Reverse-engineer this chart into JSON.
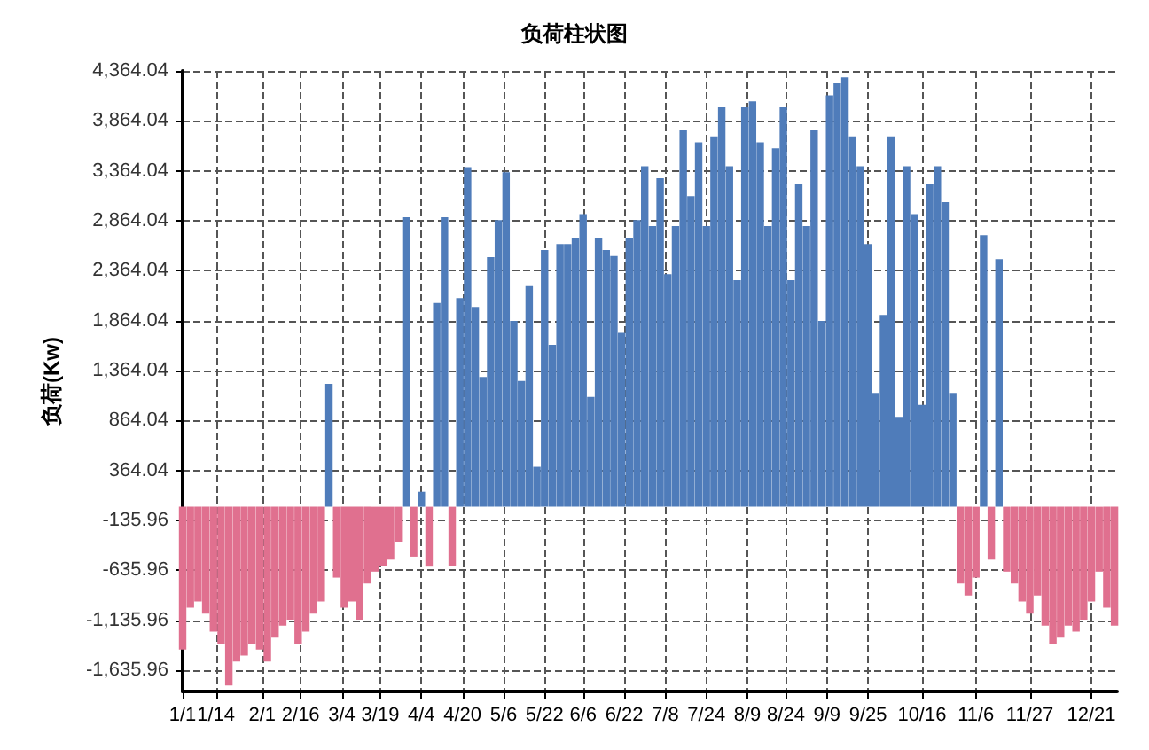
{
  "chart_data": {
    "type": "bar",
    "title": "负荷柱状图",
    "ylabel": "负荷(Kw)",
    "grid": true,
    "x": [
      "--01-01",
      "--01-04",
      "--01-07",
      "--01-10",
      "--01-13",
      "--01-16",
      "--01-19",
      "--01-22",
      "--01-25",
      "--01-28",
      "--01-31",
      "--02-03",
      "--02-06",
      "--02-09",
      "--02-12",
      "--02-15",
      "--02-18",
      "--02-21",
      "--02-24",
      "--02-27",
      "--03-02",
      "--03-05",
      "--03-08",
      "--03-11",
      "--03-14",
      "--03-17",
      "--03-20",
      "--03-23",
      "--03-26",
      "--03-29",
      "--04-01",
      "--04-04",
      "--04-07",
      "--04-10",
      "--04-13",
      "--04-16",
      "--04-19",
      "--04-22",
      "--04-25",
      "--04-28",
      "--05-01",
      "--05-04",
      "--05-07",
      "--05-10",
      "--05-13",
      "--05-16",
      "--05-19",
      "--05-22",
      "--05-25",
      "--05-28",
      "--05-31",
      "--06-03",
      "--06-06",
      "--06-09",
      "--06-12",
      "--06-15",
      "--06-18",
      "--06-21",
      "--06-24",
      "--06-27",
      "--06-30",
      "--07-03",
      "--07-06",
      "--07-09",
      "--07-12",
      "--07-15",
      "--07-18",
      "--07-21",
      "--07-24",
      "--07-27",
      "--07-30",
      "--08-02",
      "--08-05",
      "--08-08",
      "--08-11",
      "--08-14",
      "--08-17",
      "--08-20",
      "--08-23",
      "--08-26",
      "--08-29",
      "--09-01",
      "--09-04",
      "--09-07",
      "--09-10",
      "--09-13",
      "--09-16",
      "--09-19",
      "--09-22",
      "--09-25",
      "--09-28",
      "--10-01",
      "--10-04",
      "--10-07",
      "--10-10",
      "--10-13",
      "--10-16",
      "--10-19",
      "--10-22",
      "--10-25",
      "--10-28",
      "--10-31",
      "--11-03",
      "--11-06",
      "--11-09",
      "--11-12",
      "--11-15",
      "--11-18",
      "--11-21",
      "--11-24",
      "--11-27",
      "--11-30",
      "--12-03",
      "--12-06",
      "--12-09",
      "--12-12",
      "--12-15",
      "--12-18",
      "--12-21",
      "--12-24",
      "--12-27",
      "--12-30"
    ],
    "series": [
      {
        "color": "#4f7cba",
        "values": [
          null,
          null,
          null,
          null,
          null,
          null,
          null,
          null,
          null,
          null,
          null,
          null,
          null,
          null,
          null,
          null,
          null,
          null,
          null,
          1230,
          null,
          null,
          null,
          null,
          null,
          null,
          null,
          null,
          null,
          2900,
          null,
          150,
          null,
          2040,
          2900,
          null,
          2090,
          3400,
          2000,
          1300,
          2500,
          2870,
          3350,
          1860,
          1260,
          2210,
          400,
          2570,
          1620,
          2630,
          2630,
          2690,
          2930,
          1100,
          2690,
          2570,
          2510,
          1740,
          2690,
          2870,
          3410,
          2810,
          3290,
          2330,
          2810,
          3770,
          3110,
          3650,
          2810,
          3710,
          4000,
          3410,
          2270,
          4000,
          4060,
          3650,
          2810,
          3590,
          4000,
          2270,
          3230,
          2810,
          3770,
          1860,
          4120,
          4240,
          4300,
          3710,
          3410,
          2630,
          1140,
          1920,
          3710,
          900,
          3410,
          2930,
          1020,
          3230,
          3410,
          3050,
          1140,
          null,
          null,
          null,
          2720,
          null,
          2480,
          null,
          null,
          null,
          null,
          null,
          null,
          null,
          null,
          null,
          null,
          null,
          null,
          null,
          null,
          null
        ]
      },
      {
        "color": "#e0708f",
        "values": [
          -1430,
          -1010,
          -950,
          -1070,
          -1250,
          -1370,
          -1790,
          -1550,
          -1490,
          -1370,
          -1430,
          -1550,
          -1310,
          -1190,
          -1130,
          -1370,
          -1250,
          -1070,
          -950,
          null,
          -710,
          -1010,
          -950,
          -1130,
          -770,
          -650,
          -590,
          -530,
          -350,
          null,
          -500,
          null,
          -600,
          null,
          null,
          -590,
          null,
          null,
          null,
          null,
          null,
          null,
          null,
          null,
          null,
          null,
          null,
          null,
          null,
          null,
          null,
          null,
          null,
          null,
          null,
          null,
          null,
          null,
          null,
          null,
          null,
          null,
          null,
          null,
          null,
          null,
          null,
          null,
          null,
          null,
          null,
          null,
          null,
          null,
          null,
          null,
          null,
          null,
          null,
          null,
          null,
          null,
          null,
          null,
          null,
          null,
          null,
          null,
          null,
          null,
          null,
          null,
          null,
          null,
          null,
          null,
          null,
          null,
          null,
          null,
          null,
          -770,
          -890,
          -710,
          null,
          -530,
          null,
          -650,
          -770,
          -950,
          -1070,
          -890,
          -1190,
          -1370,
          -1310,
          -1190,
          -1250,
          -1130,
          -950,
          -650,
          -1010,
          -1190
        ]
      }
    ],
    "xlim": [
      "--01-01",
      "--12-31"
    ],
    "xticks": [
      {
        "value": "--01-01",
        "label": "1/1"
      },
      {
        "value": "--01-14",
        "label": "1/14"
      },
      {
        "value": "--02-01",
        "label": "2/1"
      },
      {
        "value": "--02-16",
        "label": "2/16"
      },
      {
        "value": "--03-04",
        "label": "3/4"
      },
      {
        "value": "--03-19",
        "label": "3/19"
      },
      {
        "value": "--04-04",
        "label": "4/4"
      },
      {
        "value": "--04-20",
        "label": "4/20"
      },
      {
        "value": "--05-06",
        "label": "5/6"
      },
      {
        "value": "--05-22",
        "label": "5/22"
      },
      {
        "value": "--06-06",
        "label": "6/6"
      },
      {
        "value": "--06-22",
        "label": "6/22"
      },
      {
        "value": "--07-08",
        "label": "7/8"
      },
      {
        "value": "--07-24",
        "label": "7/24"
      },
      {
        "value": "--08-09",
        "label": "8/9"
      },
      {
        "value": "--08-24",
        "label": "8/24"
      },
      {
        "value": "--09-09",
        "label": "9/9"
      },
      {
        "value": "--09-25",
        "label": "9/25"
      },
      {
        "value": "--10-16",
        "label": "10/16"
      },
      {
        "value": "--11-06",
        "label": "11/6"
      },
      {
        "value": "--11-27",
        "label": "11/27"
      },
      {
        "value": "--12-21",
        "label": "12/21"
      }
    ],
    "ylim": [
      -1850,
      4364.04
    ],
    "yticks": [
      {
        "value": -1635.96,
        "label": "-1,635.96"
      },
      {
        "value": -1135.96,
        "label": "-1,135.96"
      },
      {
        "value": -635.96,
        "label": "-635.96"
      },
      {
        "value": -135.96,
        "label": "-135.96"
      },
      {
        "value": 364.04,
        "label": "364.04"
      },
      {
        "value": 864.04,
        "label": "864.04"
      },
      {
        "value": 1364.04,
        "label": "1,364.04"
      },
      {
        "value": 1864.04,
        "label": "1,864.04"
      },
      {
        "value": 2364.04,
        "label": "2,364.04"
      },
      {
        "value": 2864.04,
        "label": "2,864.04"
      },
      {
        "value": 3364.04,
        "label": "3,364.04"
      },
      {
        "value": 3864.04,
        "label": "3,864.04"
      },
      {
        "value": 4364.04,
        "label": "4,364.04"
      }
    ]
  }
}
